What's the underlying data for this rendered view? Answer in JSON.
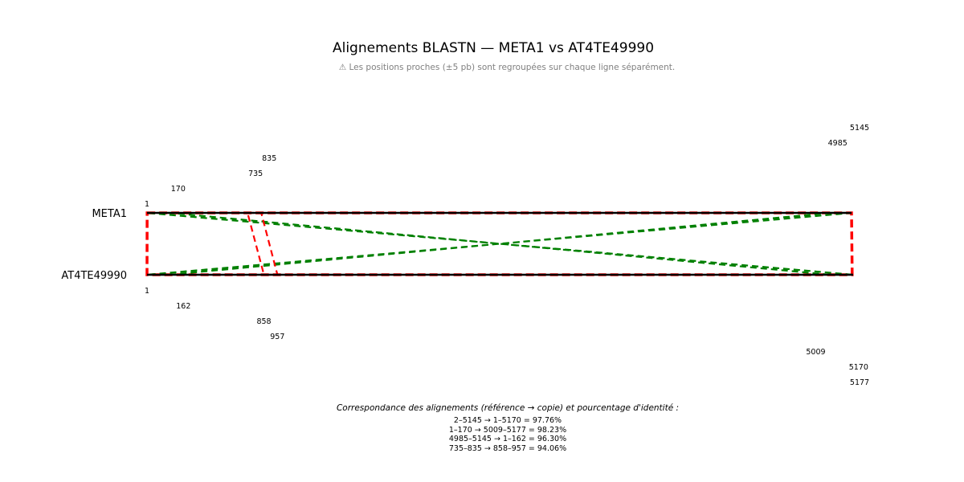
{
  "chart_data": {
    "type": "alignment",
    "title": "Alignements BLASTN — META1 vs AT4TE49990",
    "subtitle": "⚠ Les positions proches (±5 pb) sont regroupées sur chaque ligne séparément.",
    "reference": {
      "name": "META1",
      "start": 1,
      "end": 5145
    },
    "copy": {
      "name": "AT4TE49990",
      "start": 1,
      "end": 5177
    },
    "alignments": [
      {
        "ref": [
          2,
          5145
        ],
        "copy": [
          1,
          5170
        ],
        "identity": 97.76,
        "color": "#ff0000",
        "orientation": "plus"
      },
      {
        "ref": [
          1,
          170
        ],
        "copy": [
          5009,
          5177
        ],
        "identity": 98.23,
        "color": "#008000",
        "orientation": "minus"
      },
      {
        "ref": [
          4985,
          5145
        ],
        "copy": [
          1,
          162
        ],
        "identity": 96.3,
        "color": "#008000",
        "orientation": "minus"
      },
      {
        "ref": [
          735,
          835
        ],
        "copy": [
          858,
          957
        ],
        "identity": 94.06,
        "color": "#ff0000",
        "orientation": "plus"
      }
    ],
    "ref_tick_labels": [
      "1",
      "170",
      "735",
      "835",
      "4985",
      "5145"
    ],
    "copy_tick_labels": [
      "1",
      "162",
      "858",
      "957",
      "5009",
      "5170",
      "5177"
    ],
    "caption": "Correspondance des alignements (référence → copie) et pourcentage d'identité :",
    "mapping_lines": [
      "2–5145 → 1–5170 = 97.76%",
      "1–170 → 5009–5177 = 98.23%",
      "4985–5145 → 1–162 = 96.30%",
      "735–835 → 858–957 = 94.06%"
    ]
  }
}
